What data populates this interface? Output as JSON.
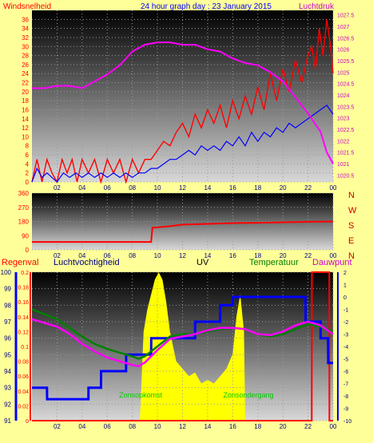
{
  "header": {
    "left_label": "Windsnelheid",
    "title": "24 hour graph day : 23 January 2015",
    "right_label": "Luchtdruk"
  },
  "direction_labels": [
    "N",
    "W",
    "S",
    "E",
    "N"
  ],
  "bottom_header": {
    "rain": "Regenval",
    "humidity": "Luchtvochtigheid",
    "uv": "UV",
    "temp": "Temperatuur",
    "dew": "Dauwpunt"
  },
  "annotations": {
    "sunrise": "Zonsopkomst",
    "sunset": "Zonsondergang"
  },
  "colors": {
    "background": "#ffff99",
    "wind_gust": "#ff0000",
    "wind_avg": "#0000ff",
    "pressure": "#ff00ff",
    "direction": "#ff0000",
    "rain": "#ff0000",
    "humidity": "#0000ff",
    "uv": "#ffff00",
    "temperature": "#008000",
    "dewpoint": "#ff00ff"
  },
  "chart_data": [
    {
      "type": "line",
      "id": "wind-pressure",
      "x_ticks": [
        "02",
        "04",
        "06",
        "08",
        "10",
        "12",
        "14",
        "16",
        "18",
        "20",
        "22",
        "00"
      ],
      "y_left_ticks": [
        0,
        2,
        4,
        6,
        8,
        10,
        12,
        14,
        16,
        18,
        20,
        22,
        24,
        26,
        28,
        30,
        32,
        34,
        36
      ],
      "y_right_ticks": [
        1020.5,
        1021,
        1021.5,
        1022,
        1022.5,
        1023,
        1023.5,
        1024,
        1024.5,
        1025,
        1025.5,
        1026,
        1026.5,
        1027,
        1027.5
      ],
      "ylim_left": [
        0,
        38
      ],
      "ylim_right": [
        1020.2,
        1027.7
      ],
      "xlim": [
        0,
        24
      ],
      "series": [
        {
          "role": "gust",
          "x": [
            0,
            0.4,
            0.8,
            1.2,
            1.6,
            2.0,
            2.4,
            2.8,
            3.2,
            3.6,
            4.0,
            4.5,
            5.0,
            5.5,
            6.0,
            6.5,
            7.0,
            7.5,
            8.0,
            8.5,
            9.0,
            9.5,
            10.0,
            10.5,
            11.0,
            11.5,
            12.0,
            12.5,
            13.0,
            13.5,
            14.0,
            14.5,
            15.0,
            15.5,
            16.0,
            16.5,
            17.0,
            17.5,
            18.0,
            18.5,
            19.0,
            19.5,
            20.0,
            20.5,
            21.0,
            21.5,
            22.0,
            22.3,
            22.6,
            22.9,
            23.2,
            23.5,
            23.8,
            24
          ],
          "y": [
            0,
            5,
            0,
            5,
            2,
            0,
            5,
            2,
            5,
            0,
            5,
            2,
            5,
            0,
            5,
            2,
            5,
            0,
            5,
            2,
            5,
            5,
            7,
            9,
            8,
            11,
            13,
            10,
            15,
            12,
            16,
            13,
            17,
            12,
            18,
            14,
            19,
            15,
            21,
            16,
            24,
            18,
            25,
            20,
            27,
            22,
            28,
            30,
            25,
            34,
            28,
            36,
            30,
            24
          ]
        },
        {
          "role": "average",
          "x": [
            0,
            0.4,
            0.8,
            1.2,
            1.6,
            2.0,
            2.5,
            3.0,
            3.5,
            4.0,
            4.5,
            5.0,
            5.5,
            6.0,
            6.5,
            7.0,
            7.5,
            8.0,
            8.5,
            9.0,
            9.5,
            10.0,
            10.5,
            11.0,
            11.5,
            12.0,
            12.5,
            13.0,
            13.5,
            14.0,
            14.5,
            15.0,
            15.5,
            16.0,
            16.5,
            17.0,
            17.5,
            18.0,
            18.5,
            19.0,
            19.5,
            20.0,
            20.5,
            21.0,
            21.5,
            22.0,
            22.5,
            23.0,
            23.5,
            24
          ],
          "y": [
            0,
            3,
            1,
            2,
            1,
            0,
            2,
            1,
            2,
            1,
            2,
            1,
            2,
            1,
            2,
            1,
            2,
            1,
            2,
            2,
            3,
            3,
            4,
            5,
            5,
            6,
            7,
            6,
            8,
            7,
            8,
            7,
            9,
            8,
            10,
            8,
            11,
            9,
            11,
            10,
            12,
            11,
            13,
            12,
            13,
            14,
            15,
            16,
            17,
            15
          ]
        },
        {
          "role": "pressure",
          "axis": "right",
          "x": [
            0,
            1,
            2,
            3,
            4,
            5,
            6,
            7,
            8,
            9,
            10,
            11,
            12,
            13,
            14,
            15,
            16,
            17,
            18,
            19,
            20,
            21,
            22,
            23,
            23.5,
            24
          ],
          "y": [
            1024.3,
            1024.3,
            1024.4,
            1024.4,
            1024.3,
            1024.6,
            1024.9,
            1025.3,
            1025.9,
            1026.2,
            1026.3,
            1026.3,
            1026.2,
            1026.2,
            1026.0,
            1025.9,
            1025.6,
            1025.4,
            1025.3,
            1025.0,
            1024.6,
            1023.9,
            1023.2,
            1022.4,
            1021.5,
            1021.0
          ]
        }
      ]
    },
    {
      "type": "line",
      "id": "wind-direction",
      "x_ticks": [
        "02",
        "04",
        "06",
        "08",
        "10",
        "12",
        "14",
        "16",
        "18",
        "20",
        "22",
        "00"
      ],
      "y_ticks": [
        0,
        90,
        180,
        270,
        360
      ],
      "ylim": [
        0,
        360
      ],
      "xlim": [
        0,
        24
      ],
      "series": [
        {
          "role": "direction",
          "x": [
            0,
            2,
            4,
            6,
            8,
            9.5,
            9.6,
            11,
            12,
            14,
            16,
            18,
            20,
            22,
            24
          ],
          "y": [
            50,
            50,
            50,
            50,
            50,
            50,
            140,
            150,
            160,
            165,
            170,
            172,
            175,
            178,
            180
          ]
        }
      ]
    },
    {
      "type": "line",
      "id": "climate",
      "x_ticks": [
        "02",
        "04",
        "06",
        "08",
        "10",
        "12",
        "14",
        "16",
        "18",
        "20",
        "22",
        "00"
      ],
      "y_humidity_ticks": [
        91,
        92,
        93,
        94,
        95,
        96,
        97,
        98,
        99,
        100
      ],
      "y_uv_ticks": [
        0,
        0.02,
        0.04,
        0.06,
        0.08,
        0.1,
        0.12,
        0.14,
        0.16,
        0.18,
        0.2
      ],
      "y_temp_ticks": [
        2,
        1,
        0,
        -1,
        -2,
        -3,
        -4,
        -5,
        -6,
        -7,
        -8,
        -9,
        -10
      ],
      "ylim_humidity": [
        91,
        100
      ],
      "ylim_uv": [
        0,
        0.2
      ],
      "ylim_temp": [
        -10,
        2
      ],
      "xlim": [
        0,
        24
      ],
      "sunrise_x": 8.6,
      "sunset_x": 16.9,
      "series": [
        {
          "role": "humidity",
          "x": [
            0,
            1.2,
            1.21,
            4.5,
            4.51,
            5.5,
            5.51,
            7.5,
            7.51,
            9.5,
            9.51,
            13.0,
            13.01,
            15.0,
            15.01,
            16.0,
            16.01,
            21.8,
            21.81,
            23.0,
            23.01,
            23.6,
            23.61,
            24
          ],
          "y": [
            93,
            93,
            92.3,
            92.3,
            93,
            93,
            94,
            94,
            95,
            95,
            96,
            96,
            97,
            97,
            98,
            98,
            98.5,
            98.5,
            97,
            97,
            96,
            96,
            94.5,
            94.5
          ]
        },
        {
          "role": "uv",
          "x": [
            0,
            8.6,
            8.9,
            9.2,
            9.5,
            9.8,
            10.1,
            10.4,
            10.7,
            11.0,
            11.5,
            12.0,
            12.5,
            13.0,
            13.5,
            14.0,
            14.5,
            15.0,
            15.5,
            16.0,
            16.3,
            16.6,
            16.9,
            17.0,
            24
          ],
          "y": [
            0,
            0,
            0.12,
            0.15,
            0.17,
            0.19,
            0.2,
            0.19,
            0.16,
            0.12,
            0.08,
            0.07,
            0.06,
            0.065,
            0.05,
            0.055,
            0.05,
            0.06,
            0.07,
            0.09,
            0.14,
            0.17,
            0.12,
            0,
            0
          ]
        },
        {
          "role": "temperature",
          "x": [
            0,
            1,
            2,
            3,
            4,
            5,
            6,
            7,
            8,
            8.5,
            9,
            10,
            11,
            12,
            13,
            14,
            15,
            16,
            17,
            18,
            19,
            20,
            21,
            22,
            23,
            24
          ],
          "y": [
            -1.0,
            -1.4,
            -1.8,
            -2.5,
            -3.2,
            -3.8,
            -4.2,
            -4.5,
            -4.8,
            -5.0,
            -4.8,
            -4.0,
            -3.2,
            -3.0,
            -3.0,
            -2.8,
            -2.6,
            -2.5,
            -2.6,
            -3.0,
            -3.2,
            -3.0,
            -2.6,
            -2.2,
            -2.4,
            -2.8
          ]
        },
        {
          "role": "dewpoint",
          "x": [
            0,
            1,
            2,
            3,
            4,
            5,
            6,
            7,
            8,
            8.5,
            9,
            10,
            11,
            12,
            13,
            14,
            15,
            16,
            17,
            18,
            19,
            20,
            21,
            22,
            23,
            24
          ],
          "y": [
            -1.8,
            -2.1,
            -2.4,
            -3.0,
            -3.8,
            -4.4,
            -4.9,
            -5.2,
            -5.5,
            -5.6,
            -5.3,
            -4.3,
            -3.4,
            -3.2,
            -3.0,
            -2.7,
            -2.5,
            -2.5,
            -2.6,
            -3.0,
            -3.1,
            -2.8,
            -2.3,
            -2.0,
            -2.3,
            -3.0
          ]
        },
        {
          "role": "rain",
          "x": [
            0,
            22.3,
            22.31,
            23.7,
            23.71,
            24
          ],
          "y": [
            0,
            0,
            100,
            100,
            0,
            0
          ]
        }
      ]
    }
  ]
}
